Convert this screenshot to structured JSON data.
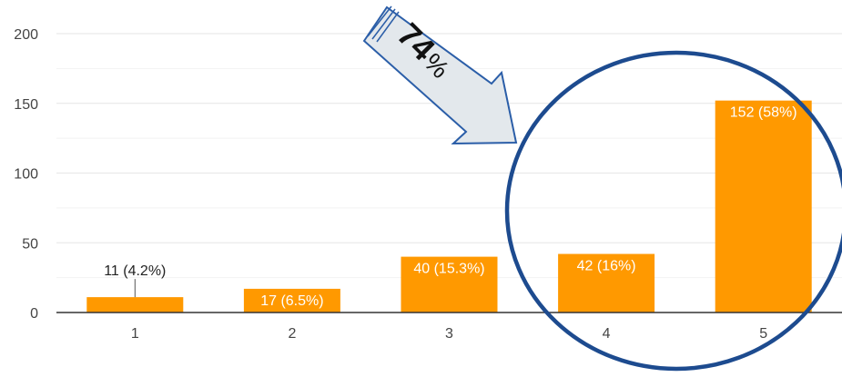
{
  "chart_data": {
    "type": "bar",
    "categories": [
      "1",
      "2",
      "3",
      "4",
      "5"
    ],
    "values": [
      11,
      17,
      40,
      42,
      152
    ],
    "data_labels": [
      "11 (4.2%)",
      "17 (6.5%)",
      "40 (15.3%)",
      "42 (16%)",
      "152 (58%)"
    ],
    "title": "",
    "xlabel": "",
    "ylabel": "",
    "ylim": [
      0,
      200
    ],
    "yticks": [
      0,
      50,
      100,
      150,
      200
    ],
    "grid": true,
    "legend": "none",
    "colors": {
      "bar": "#ff9900",
      "grid": "#e6e6e6",
      "axis": "#333333",
      "label_inside": "#ffffff",
      "label_outside": "#222222"
    }
  },
  "annotation": {
    "percent_number": "74",
    "percent_sign": "%",
    "arrow_fill": "#e3e8ec",
    "arrow_stroke": "#2b5ea8",
    "circle_stroke": "#1d4b8f"
  }
}
